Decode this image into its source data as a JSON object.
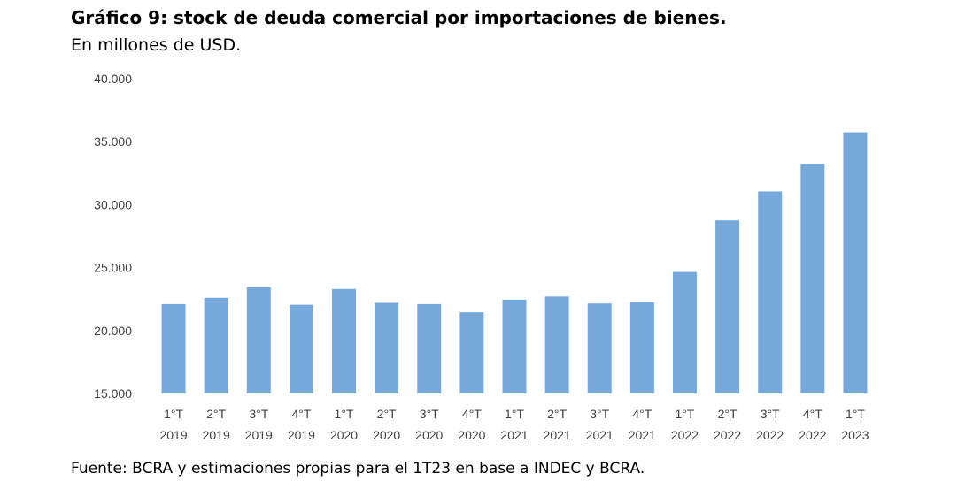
{
  "title": "Gráfico 9: stock de deuda comercial por importaciones de bienes.",
  "subtitle": "En millones de USD.",
  "source": "Fuente: BCRA y estimaciones propias para el 1T23 en base a INDEC y BCRA.",
  "colors": {
    "bar": "#76a8db"
  },
  "chart_data": {
    "type": "bar",
    "categories": [
      [
        "1°T",
        "2019"
      ],
      [
        "2°T",
        "2019"
      ],
      [
        "3°T",
        "2019"
      ],
      [
        "4°T",
        "2019"
      ],
      [
        "1°T",
        "2020"
      ],
      [
        "2°T",
        "2020"
      ],
      [
        "3°T",
        "2020"
      ],
      [
        "4°T",
        "2020"
      ],
      [
        "1°T",
        "2021"
      ],
      [
        "2°T",
        "2021"
      ],
      [
        "3°T",
        "2021"
      ],
      [
        "4°T",
        "2021"
      ],
      [
        "1°T",
        "2022"
      ],
      [
        "2°T",
        "2022"
      ],
      [
        "3°T",
        "2022"
      ],
      [
        "4°T",
        "2022"
      ],
      [
        "1°T",
        "2023"
      ]
    ],
    "values": [
      22100,
      22600,
      23450,
      22050,
      23300,
      22200,
      22100,
      21450,
      22450,
      22700,
      22150,
      22250,
      24650,
      28750,
      31050,
      33250,
      35750
    ],
    "ylim": [
      15000,
      40000
    ],
    "yticks": [
      15000,
      20000,
      25000,
      30000,
      35000,
      40000
    ],
    "ytick_labels": [
      "15.000",
      "20.000",
      "25.000",
      "30.000",
      "35.000",
      "40.000"
    ],
    "grid": false,
    "legend": "none"
  }
}
